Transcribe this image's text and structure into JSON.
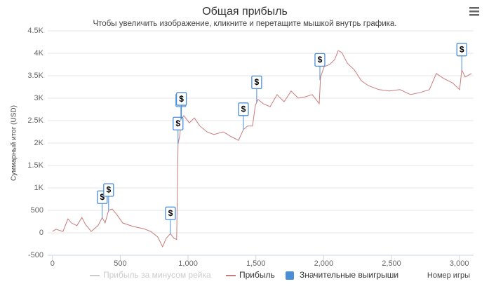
{
  "chart_data": {
    "type": "line",
    "title": "Общая прибыль",
    "subtitle": "Чтобы увеличить изображение, кликните и перетащите мышкой внутрь графика.",
    "y_label": "Суммарный итог (USD)",
    "x_label": "Номер игры",
    "xlim": [
      -35,
      3105
    ],
    "ylim": [
      -500,
      4500
    ],
    "xticks": [
      0,
      500,
      {
        "value": 1000,
        "label": "1,000"
      },
      {
        "value": 1500,
        "label": "1,500"
      },
      {
        "value": 2000,
        "label": "2,000"
      },
      {
        "value": 2500,
        "label": "2,500"
      },
      {
        "value": 3000,
        "label": "3,000"
      }
    ],
    "yticks": [
      -500,
      0,
      500,
      {
        "value": 1000,
        "label": "1K"
      },
      {
        "value": 1500,
        "label": "1.5K"
      },
      {
        "value": 2000,
        "label": "2K"
      },
      {
        "value": 2500,
        "label": "2.5K"
      },
      {
        "value": 3000,
        "label": "3K"
      },
      {
        "value": 3500,
        "label": "3.5K"
      },
      {
        "value": 4000,
        "label": "4K"
      },
      {
        "value": 4500,
        "label": "4.5K"
      }
    ],
    "grid": true,
    "series": [
      {
        "name": "Прибыль за минусом рейка",
        "color": "#cccccc",
        "visible": false
      },
      {
        "name": "Прибыль",
        "color": "#c97b7b",
        "x": [
          0,
          26,
          78,
          114,
          140,
          180,
          217,
          243,
          285,
          336,
          367,
          388,
          414,
          440,
          471,
          518,
          595,
          673,
          725,
          776,
          812,
          839,
          870,
          895,
          916,
          926,
          937,
          952,
          968,
          989,
          1009,
          1046,
          1087,
          1139,
          1190,
          1258,
          1320,
          1372,
          1408,
          1439,
          1475,
          1496,
          1516,
          1553,
          1605,
          1656,
          1708,
          1760,
          1812,
          1863,
          1915,
          1967,
          1977,
          2003,
          2044,
          2081,
          2107,
          2133,
          2174,
          2226,
          2277,
          2329,
          2407,
          2484,
          2562,
          2640,
          2717,
          2779,
          2831,
          2883,
          2950,
          3002,
          3018,
          3043,
          3090
        ],
        "values": [
          30,
          80,
          30,
          310,
          220,
          160,
          340,
          190,
          30,
          160,
          340,
          220,
          500,
          530,
          420,
          220,
          140,
          90,
          30,
          -90,
          -310,
          -120,
          -20,
          -120,
          -150,
          1980,
          2140,
          2530,
          2610,
          2530,
          2450,
          2560,
          2380,
          2250,
          2190,
          2250,
          2140,
          2060,
          2300,
          2380,
          2380,
          2840,
          2970,
          2880,
          2810,
          3080,
          2920,
          3160,
          3000,
          3030,
          3080,
          2880,
          3470,
          3700,
          3750,
          3860,
          4060,
          4020,
          3780,
          3630,
          3390,
          3280,
          3190,
          3160,
          3190,
          3080,
          3130,
          3190,
          3550,
          3440,
          3340,
          3190,
          3630,
          3470,
          3550
        ]
      },
      {
        "name": "Значительные выигрыши",
        "color": "#4a8fd6",
        "type": "flags",
        "title": "$",
        "x": [
          367,
          414,
          870,
          926,
          947,
          951,
          1408,
          1506,
          1972,
          3018
        ],
        "values": [
          340,
          500,
          -20,
          1980,
          2500,
          2530,
          2300,
          2900,
          3400,
          3630
        ]
      }
    ]
  }
}
